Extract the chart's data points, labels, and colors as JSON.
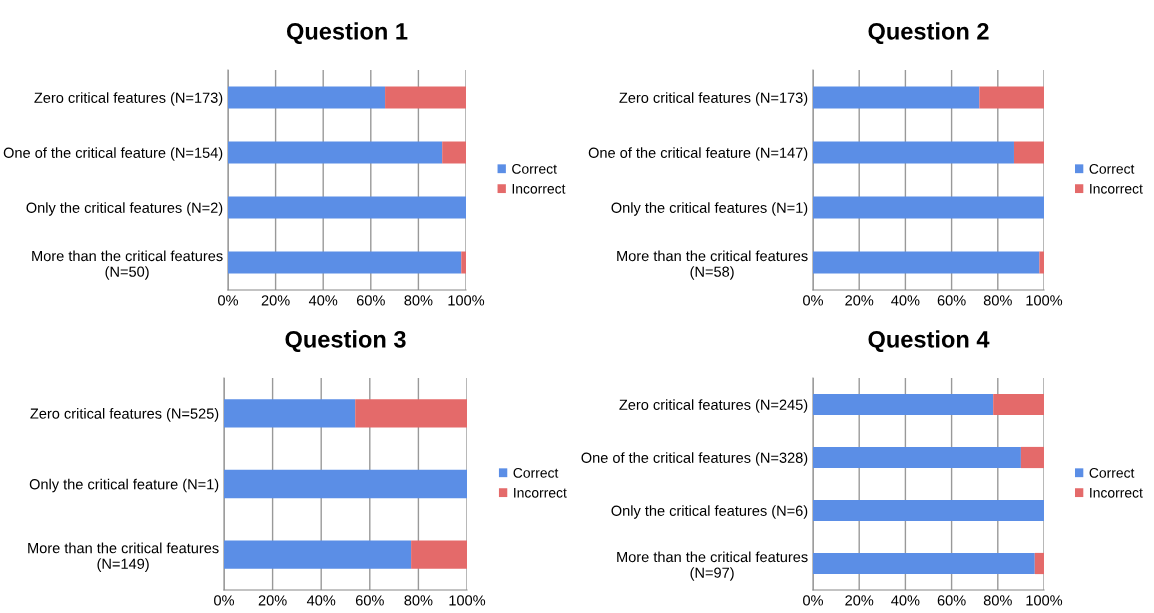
{
  "chart_data": [
    {
      "type": "bar",
      "orientation": "horizontal",
      "stacked": true,
      "title": "Question 1",
      "categories": [
        "Zero critical features (N=173)",
        "One of the critical feature (N=154)",
        "Only the critical features (N=2)",
        "More than the critical features\n(N=50)"
      ],
      "series": [
        {
          "name": "Correct",
          "color": "#5b8ee6",
          "values": [
            66,
            90,
            100,
            98
          ]
        },
        {
          "name": "Incorrect",
          "color": "#e46a6a",
          "values": [
            34,
            10,
            0,
            2
          ]
        }
      ],
      "xlim": [
        0,
        100
      ],
      "xticks": [
        {
          "value": 0,
          "label": "0%"
        },
        {
          "value": 20,
          "label": "20%"
        },
        {
          "value": 40,
          "label": "40%"
        },
        {
          "value": 60,
          "label": "60%"
        },
        {
          "value": 80,
          "label": "80%"
        },
        {
          "value": 100,
          "label": "100%"
        }
      ],
      "grid": "x",
      "legend": "right"
    },
    {
      "type": "bar",
      "orientation": "horizontal",
      "stacked": true,
      "title": "Question 2",
      "categories": [
        "Zero critical features (N=173)",
        "One of the critical feature (N=147)",
        "Only the critical features (N=1)",
        "More than the critical features\n(N=58)"
      ],
      "series": [
        {
          "name": "Correct",
          "color": "#5b8ee6",
          "values": [
            72,
            87,
            100,
            98
          ]
        },
        {
          "name": "Incorrect",
          "color": "#e46a6a",
          "values": [
            28,
            13,
            0,
            2
          ]
        }
      ],
      "xlim": [
        0,
        100
      ],
      "xticks": [
        {
          "value": 0,
          "label": "0%"
        },
        {
          "value": 20,
          "label": "20%"
        },
        {
          "value": 40,
          "label": "40%"
        },
        {
          "value": 60,
          "label": "60%"
        },
        {
          "value": 80,
          "label": "80%"
        },
        {
          "value": 100,
          "label": "100%"
        }
      ],
      "grid": "x",
      "legend": "right"
    },
    {
      "type": "bar",
      "orientation": "horizontal",
      "stacked": true,
      "title": "Question 3",
      "categories": [
        "Zero critical features (N=525)",
        "Only the critical feature (N=1)",
        "More than the critical features\n(N=149)"
      ],
      "series": [
        {
          "name": "Correct",
          "color": "#5b8ee6",
          "values": [
            54,
            100,
            77
          ]
        },
        {
          "name": "Incorrect",
          "color": "#e46a6a",
          "values": [
            46,
            0,
            23
          ]
        }
      ],
      "xlim": [
        0,
        100
      ],
      "xticks": [
        {
          "value": 0,
          "label": "0%"
        },
        {
          "value": 20,
          "label": "20%"
        },
        {
          "value": 40,
          "label": "40%"
        },
        {
          "value": 60,
          "label": "60%"
        },
        {
          "value": 80,
          "label": "80%"
        },
        {
          "value": 100,
          "label": "100%"
        }
      ],
      "grid": "x",
      "legend": "right"
    },
    {
      "type": "bar",
      "orientation": "horizontal",
      "stacked": true,
      "title": "Question 4",
      "categories": [
        "Zero critical features (N=245)",
        "One of the critical features (N=328)",
        "Only the critical features (N=6)",
        "More than the critical features\n(N=97)"
      ],
      "series": [
        {
          "name": "Correct",
          "color": "#5b8ee6",
          "values": [
            78,
            90,
            100,
            96
          ]
        },
        {
          "name": "Incorrect",
          "color": "#e46a6a",
          "values": [
            22,
            10,
            0,
            4
          ]
        }
      ],
      "xlim": [
        0,
        100
      ],
      "xticks": [
        {
          "value": 0,
          "label": "0%"
        },
        {
          "value": 20,
          "label": "20%"
        },
        {
          "value": 40,
          "label": "40%"
        },
        {
          "value": 60,
          "label": "60%"
        },
        {
          "value": 80,
          "label": "80%"
        },
        {
          "value": 100,
          "label": "100%"
        }
      ],
      "grid": "x",
      "legend": "right"
    }
  ]
}
